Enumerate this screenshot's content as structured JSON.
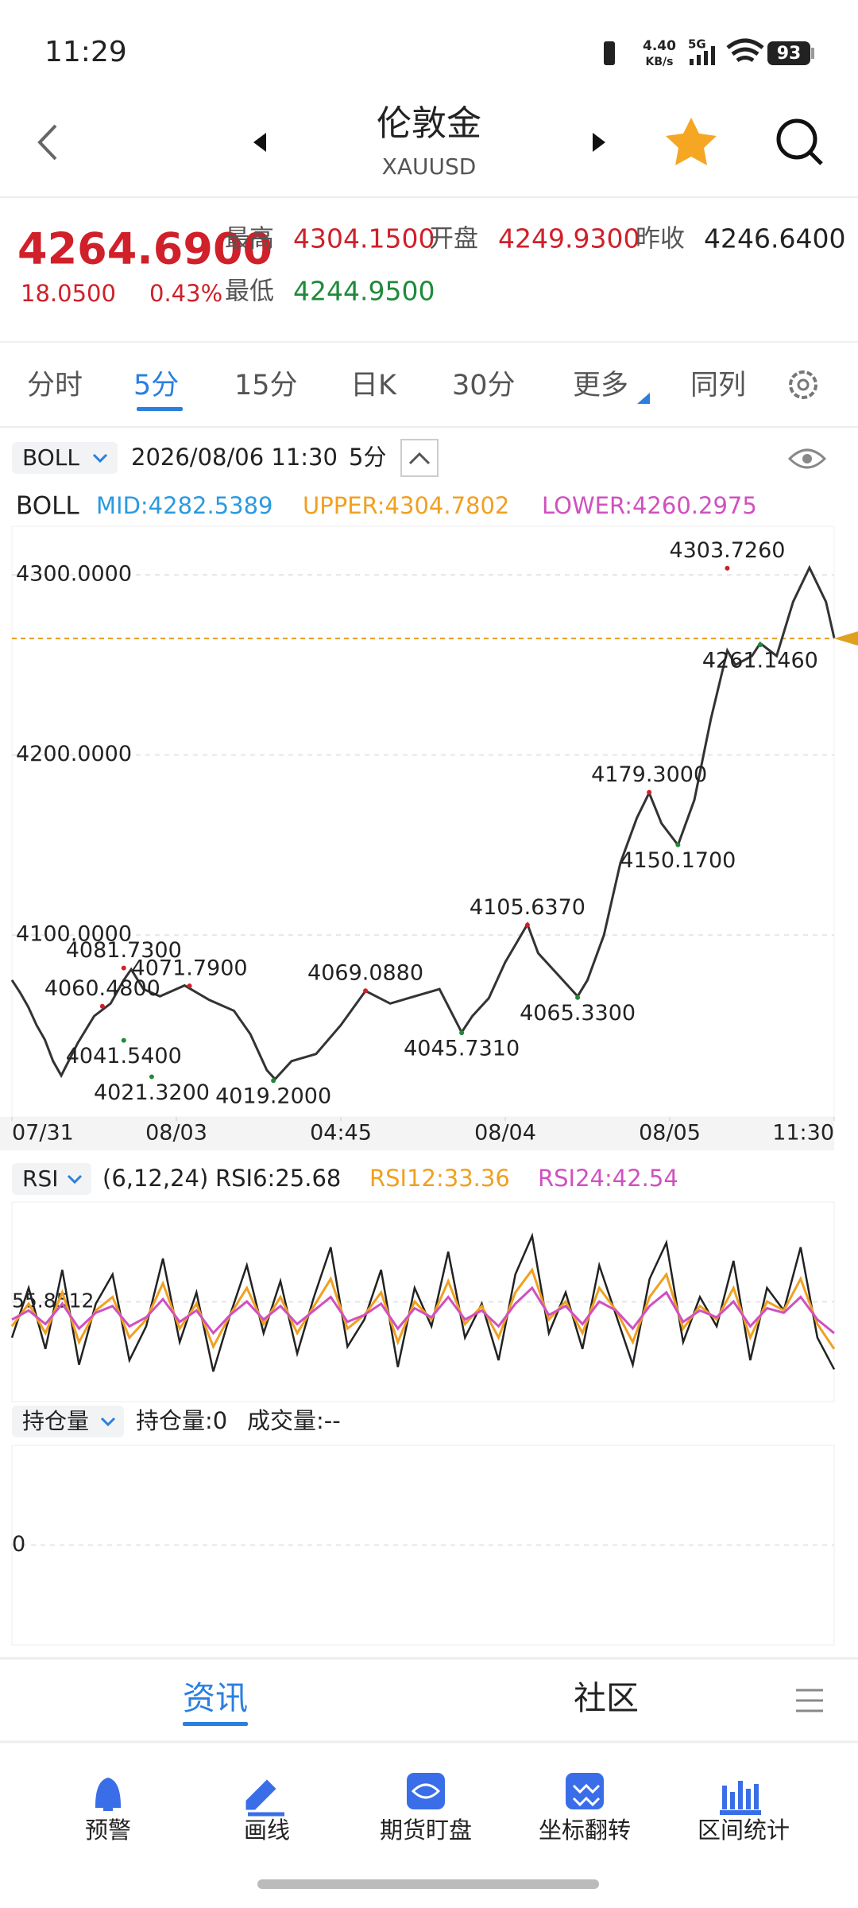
{
  "status_bar": {
    "time": "11:29",
    "net_speed": "4.40",
    "net_unit": "KB/s",
    "network": "5G",
    "battery": "93"
  },
  "header": {
    "title": "伦敦金",
    "symbol": "XAUUSD"
  },
  "quote": {
    "price": "4264.6900",
    "change": "18.0500",
    "change_pct": "0.43%",
    "high_label": "最高",
    "high": "4304.1500",
    "open_label": "开盘",
    "open": "4249.9300",
    "prev_close_label": "昨收",
    "prev_close": "4246.6400",
    "low_label": "最低",
    "low": "4244.9500"
  },
  "tabs": [
    "分时",
    "5分",
    "15分",
    "日K",
    "30分",
    "更多",
    "同列"
  ],
  "boll_bar": {
    "indicator": "BOLL",
    "datetime": "2026/08/06 11:30",
    "period": "5分"
  },
  "boll_legend": {
    "name": "BOLL",
    "mid": "MID:4282.5389",
    "upper": "UPPER:4304.7802",
    "lower": "LOWER:4260.2975"
  },
  "price_chart": {
    "type": "line",
    "ylim": [
      3999,
      4327
    ],
    "yticks": [
      {
        "value": 4300,
        "label": "4300.0000"
      },
      {
        "value": 4200,
        "label": "4200.0000"
      },
      {
        "value": 4100,
        "label": "4100.0000"
      }
    ],
    "xlim": [
      0,
      100
    ],
    "xticks": [
      {
        "value": 0,
        "label": "07/31"
      },
      {
        "value": 20,
        "label": "08/03"
      },
      {
        "value": 40,
        "label": "04:45"
      },
      {
        "value": 60,
        "label": "08/04"
      },
      {
        "value": 80,
        "label": "08/05"
      },
      {
        "value": 100,
        "label": "11:30"
      }
    ],
    "grid": true,
    "color": "#333333",
    "x": [
      0,
      1,
      2,
      3,
      4,
      5,
      6,
      8,
      10,
      12,
      13.6,
      14.5,
      16,
      18,
      21,
      24,
      27,
      29,
      31,
      32,
      34,
      37,
      40,
      43,
      46,
      49,
      52,
      54.7,
      56,
      58,
      60,
      62.7,
      64,
      66,
      68.8,
      70,
      72,
      74,
      76,
      77.5,
      79,
      81,
      83,
      85,
      87,
      88,
      90,
      91,
      93,
      95,
      97,
      99,
      100
    ],
    "values": [
      4075,
      4068,
      4060,
      4050,
      4042,
      4030,
      4022,
      4040,
      4055,
      4062,
      4075,
      4081,
      4070,
      4066,
      4072,
      4064,
      4058,
      4045,
      4025,
      4020,
      4030,
      4034,
      4050,
      4069,
      4062,
      4066,
      4070,
      4046,
      4055,
      4065,
      4085,
      4106,
      4090,
      4080,
      4066,
      4075,
      4100,
      4140,
      4165,
      4179,
      4162,
      4150,
      4175,
      4220,
      4258,
      4250,
      4255,
      4262,
      4255,
      4285,
      4304,
      4285,
      4265
    ],
    "last_price": {
      "value": 4264.69,
      "color": "#e0a020"
    },
    "annotations": [
      {
        "x": 87,
        "value": 4303.726,
        "label": "4303.7260",
        "color": "#d0202a"
      },
      {
        "x": 91,
        "value": 4261.146,
        "label": "4261.1460",
        "color": "#1f8a3a"
      },
      {
        "x": 77.5,
        "value": 4179.3,
        "label": "4179.3000",
        "color": "#d0202a"
      },
      {
        "x": 81,
        "value": 4150.17,
        "label": "4150.1700",
        "color": "#1f8a3a"
      },
      {
        "x": 62.7,
        "value": 4105.637,
        "label": "4105.6370",
        "color": "#d0202a"
      },
      {
        "x": 68.8,
        "value": 4065.33,
        "label": "4065.3300",
        "color": "#1f8a3a"
      },
      {
        "x": 43,
        "value": 4069.088,
        "label": "4069.0880",
        "color": "#d0202a"
      },
      {
        "x": 54.7,
        "value": 4045.731,
        "label": "4045.7310",
        "color": "#1f8a3a"
      },
      {
        "x": 31.8,
        "value": 4019.2,
        "label": "4019.2000",
        "color": "#1f8a3a"
      },
      {
        "x": 13.6,
        "value": 4081.73,
        "label": "4081.7300",
        "color": "#d0202a"
      },
      {
        "x": 21.6,
        "value": 4071.79,
        "label": "4071.7900",
        "color": "#d0202a"
      },
      {
        "x": 11,
        "value": 4060.48,
        "label": "4060.4800",
        "color": "#d0202a"
      },
      {
        "x": 13.6,
        "value": 4041.54,
        "label": "4041.5400",
        "color": "#1f8a3a"
      },
      {
        "x": 17,
        "value": 4021.32,
        "label": "4021.3200",
        "color": "#1f8a3a"
      }
    ]
  },
  "rsi_bar": {
    "indicator": "RSI",
    "params": "(6,12,24)",
    "rsi6": "RSI6:25.68",
    "rsi12": "RSI12:33.36",
    "rsi24": "RSI24:42.54"
  },
  "rsi_chart": {
    "type": "line",
    "ylim": [
      11.7,
      100
    ],
    "yticks": [
      55.8512
    ],
    "series": [
      {
        "color": "#222222",
        "values": [
          40,
          62,
          35,
          70,
          28,
          55,
          68,
          30,
          45,
          75,
          38,
          60,
          25,
          50,
          72,
          42,
          65,
          33,
          58,
          80,
          36,
          48,
          70,
          27,
          62,
          45,
          78,
          40,
          55,
          30,
          68,
          85,
          42,
          60,
          35,
          72,
          50,
          28,
          66,
          82,
          38,
          58,
          45,
          74,
          30,
          62,
          52,
          80,
          40,
          26
        ]
      },
      {
        "color": "#f0a020",
        "values": [
          45,
          55,
          42,
          60,
          38,
          52,
          58,
          40,
          48,
          64,
          44,
          55,
          36,
          50,
          62,
          46,
          58,
          42,
          54,
          66,
          44,
          50,
          60,
          38,
          56,
          48,
          65,
          46,
          54,
          40,
          60,
          70,
          48,
          56,
          42,
          62,
          52,
          38,
          58,
          68,
          44,
          54,
          48,
          62,
          40,
          56,
          52,
          66,
          46,
          35
        ]
      },
      {
        "color": "#d050c0",
        "values": [
          48,
          52,
          46,
          55,
          44,
          51,
          54,
          45,
          49,
          57,
          47,
          52,
          42,
          50,
          56,
          48,
          54,
          46,
          52,
          58,
          47,
          50,
          55,
          44,
          53,
          49,
          58,
          48,
          52,
          45,
          55,
          62,
          50,
          54,
          46,
          56,
          52,
          44,
          54,
          60,
          47,
          52,
          49,
          56,
          45,
          53,
          51,
          58,
          48,
          42
        ]
      }
    ]
  },
  "position_bar": {
    "indicator": "持仓量",
    "open_interest": "持仓量:0",
    "volume": "成交量:--"
  },
  "position_chart": {
    "ylim": [
      -1,
      1
    ],
    "yticks": [
      0
    ]
  },
  "content_tabs": [
    "资讯",
    "社区"
  ],
  "toolbar": [
    "预警",
    "画线",
    "期货盯盘",
    "坐标翻转",
    "区间统计"
  ]
}
